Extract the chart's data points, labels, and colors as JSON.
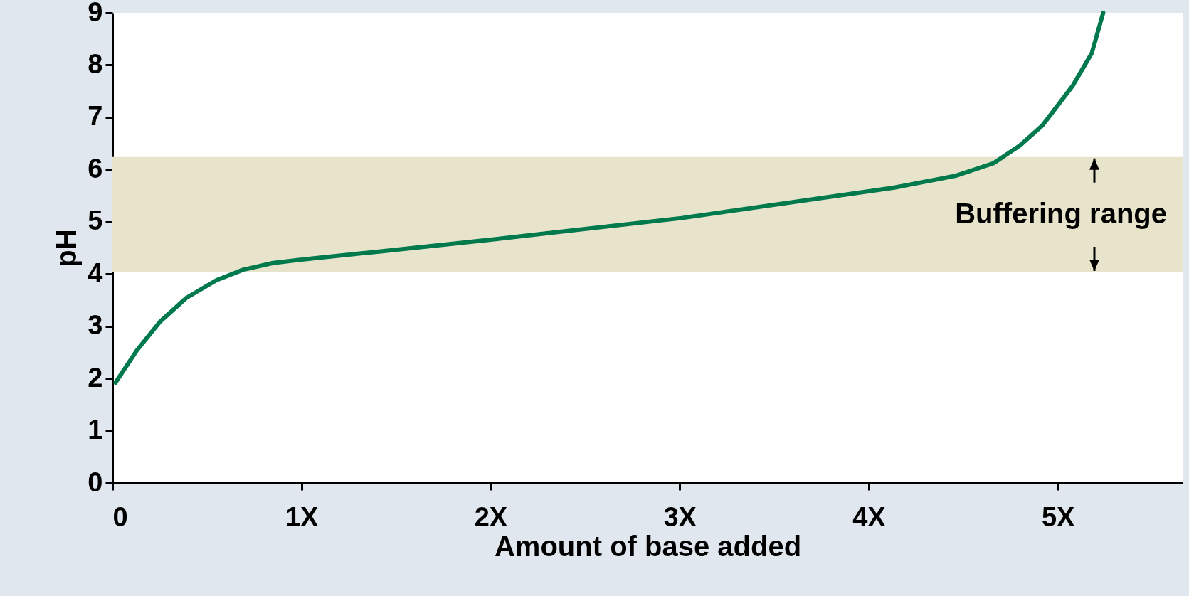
{
  "chart_data": {
    "type": "line",
    "xlabel": "Amount of base added",
    "ylabel": "pH",
    "x": [
      0.016,
      0.13,
      0.25,
      0.39,
      0.55,
      0.69,
      0.85,
      1.01,
      1.41,
      2.01,
      3.01,
      4.13,
      4.46,
      4.66,
      4.8,
      4.92,
      5.08,
      5.18,
      5.24
    ],
    "series": [
      {
        "color": "#007a4d",
        "values": [
          1.92,
          2.54,
          3.08,
          3.54,
          3.88,
          4.08,
          4.21,
          4.28,
          4.43,
          4.66,
          5.07,
          5.65,
          5.88,
          6.12,
          6.46,
          6.85,
          7.61,
          8.23,
          9.0
        ]
      }
    ],
    "xlim": [
      0,
      5.66
    ],
    "ylim": [
      0,
      9
    ],
    "xticks": [
      0,
      {
        "value": 1,
        "label": "1X"
      },
      {
        "value": 2,
        "label": "2X"
      },
      {
        "value": 3,
        "label": "3X"
      },
      {
        "value": 4,
        "label": "4X"
      },
      {
        "value": 5,
        "label": "5X"
      }
    ],
    "yticks": [
      0,
      1,
      2,
      3,
      4,
      5,
      6,
      7,
      8,
      9
    ],
    "bands": [
      {
        "axis": "y",
        "from": 4.03,
        "to": 6.24,
        "label": "Buffering range",
        "color": "#e8e4cc"
      }
    ],
    "marker": "none",
    "line_style": "solid"
  }
}
